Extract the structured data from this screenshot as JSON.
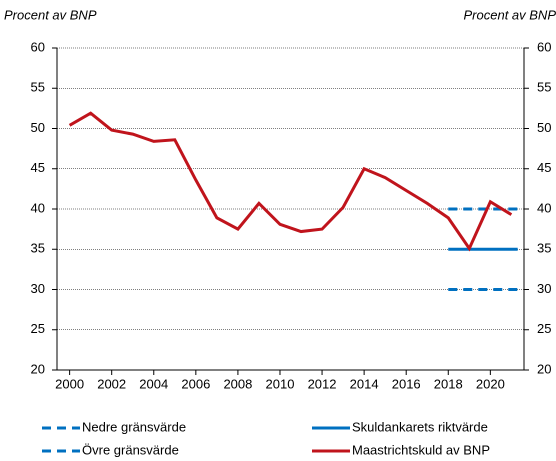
{
  "chart_data": {
    "type": "line",
    "y_label": "Procent av BNP",
    "y2_label": "Procent av BNP",
    "xlim": [
      1999.4,
      2021.6
    ],
    "xticks": [
      2000,
      2002,
      2004,
      2006,
      2008,
      2010,
      2012,
      2014,
      2016,
      2018,
      2020
    ],
    "ylim": [
      20,
      60
    ],
    "yticks": [
      20,
      25,
      30,
      35,
      40,
      45,
      50,
      55,
      60
    ],
    "y2lim": [
      20,
      60
    ],
    "y2ticks": [
      20,
      25,
      30,
      35,
      40,
      45,
      50,
      55,
      60
    ],
    "grid": true,
    "legend": "bottom",
    "series": [
      {
        "name": "Nedre gränsvärde",
        "color": "#0070c0",
        "style": "dashed",
        "x": [
          2018,
          2021.3
        ],
        "values": [
          30,
          30
        ]
      },
      {
        "name": "Övre gränsvärde",
        "color": "#0070c0",
        "style": "dashed",
        "x": [
          2018,
          2021.3
        ],
        "values": [
          40,
          40
        ]
      },
      {
        "name": "Skuldankarets riktvärde",
        "color": "#0070c0",
        "style": "solid",
        "x": [
          2018,
          2021.3
        ],
        "values": [
          35,
          35
        ]
      },
      {
        "name": "Maastrichtskuld av BNP",
        "color": "#c0141c",
        "style": "solid",
        "x": [
          2000,
          2001,
          2002,
          2003,
          2004,
          2005,
          2006,
          2007,
          2008,
          2009,
          2010,
          2011,
          2012,
          2013,
          2014,
          2015,
          2016,
          2017,
          2018,
          2019,
          2020,
          2021
        ],
        "values": [
          50.4,
          51.9,
          49.8,
          49.3,
          48.4,
          48.6,
          43.6,
          38.9,
          37.5,
          40.7,
          38.1,
          37.2,
          37.5,
          40.2,
          45.0,
          43.9,
          42.3,
          40.7,
          38.9,
          35.1,
          40.9,
          39.3
        ]
      }
    ]
  }
}
